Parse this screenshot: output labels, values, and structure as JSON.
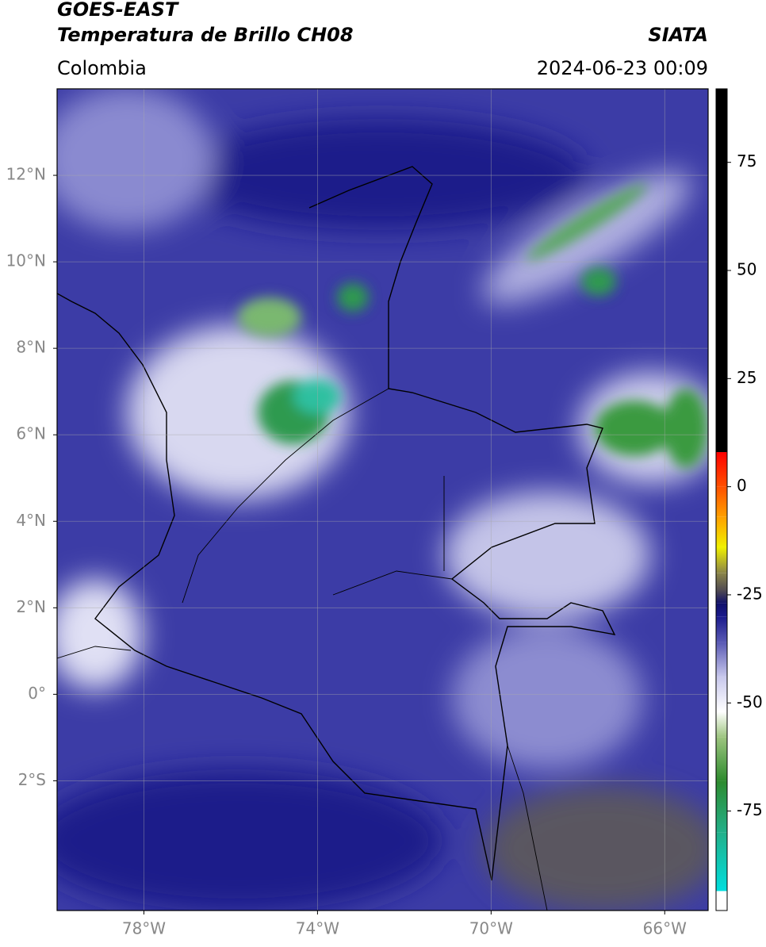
{
  "header": {
    "title_line1": "GOES-EAST",
    "title_line2": "Temperatura de Brillo CH08",
    "source": "SIATA",
    "region": "Colombia",
    "datetime": "2024-06-23 00:09"
  },
  "map": {
    "lon_range": [
      -80,
      -65
    ],
    "lat_range": [
      -5,
      14
    ],
    "grid": true,
    "lon_ticks": [
      {
        "value": -78,
        "label": "78°W"
      },
      {
        "value": -74,
        "label": "74°W"
      },
      {
        "value": -70,
        "label": "70°W"
      },
      {
        "value": -66,
        "label": "66°W"
      }
    ],
    "lat_ticks": [
      {
        "value": 12,
        "label": "12°N"
      },
      {
        "value": 10,
        "label": "10°N"
      },
      {
        "value": 8,
        "label": "8°N"
      },
      {
        "value": 6,
        "label": "6°N"
      },
      {
        "value": 4,
        "label": "4°N"
      },
      {
        "value": 2,
        "label": "2°N"
      },
      {
        "value": 0,
        "label": "0°"
      },
      {
        "value": -2,
        "label": "2°S"
      }
    ]
  },
  "colorbar": {
    "range": [
      -98,
      92
    ],
    "ticks": [
      75,
      50,
      25,
      0,
      -25,
      -50,
      -75
    ],
    "stops": [
      {
        "value": -98,
        "color": "#ffffff"
      },
      {
        "value": -93.5,
        "color": "#ffffff"
      },
      {
        "value": -93.5,
        "color": "#00dede"
      },
      {
        "value": -80,
        "color": "#22b08a"
      },
      {
        "value": -68,
        "color": "#2e8b2e"
      },
      {
        "value": -58,
        "color": "#9cc47e"
      },
      {
        "value": -52,
        "color": "#ffffff"
      },
      {
        "value": -44,
        "color": "#c8c8ec"
      },
      {
        "value": -36,
        "color": "#5a5ab4"
      },
      {
        "value": -30,
        "color": "#1a1a8c"
      },
      {
        "value": -27,
        "color": "#10106a"
      },
      {
        "value": -24,
        "color": "#504a52"
      },
      {
        "value": -20,
        "color": "#8a8448"
      },
      {
        "value": -14,
        "color": "#f0f000"
      },
      {
        "value": -7,
        "color": "#ffa000"
      },
      {
        "value": 0,
        "color": "#ff5000"
      },
      {
        "value": 8,
        "color": "#ff0000"
      },
      {
        "value": 8,
        "color": "#000000"
      },
      {
        "value": 92,
        "color": "#000000"
      }
    ]
  }
}
